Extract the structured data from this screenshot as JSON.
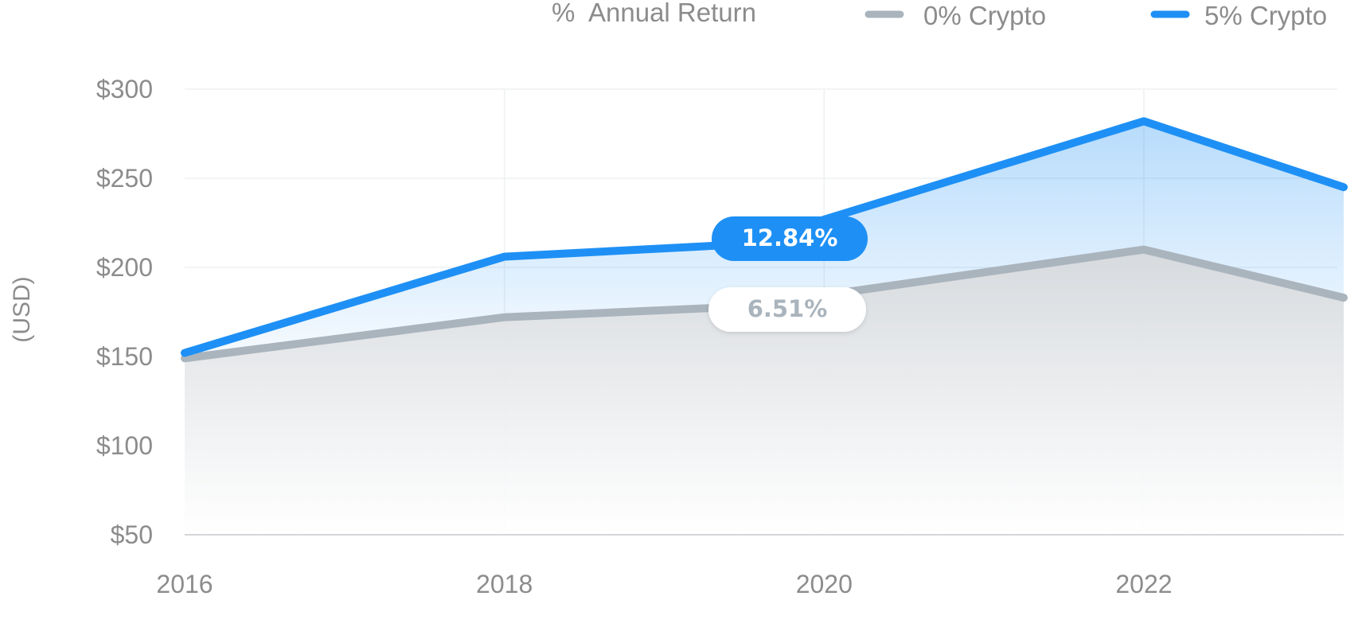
{
  "legend": {
    "percent_symbol": "%",
    "title": "Annual Return",
    "series_1": "0% Crypto",
    "series_2": "5% Crypto"
  },
  "colors": {
    "series_1": "#aab4bd",
    "series_2": "#1e90f5",
    "pill_1_bg": "#ffffff",
    "pill_1_text": "#aab4bd",
    "pill_2_bg": "#1e90f5",
    "pill_2_text": "#ffffff"
  },
  "chart_data": {
    "type": "area",
    "title": "",
    "xlabel": "",
    "ylabel": "(USD)",
    "x": [
      2016,
      2018,
      2019.5,
      2022,
      2023.25
    ],
    "xticks": [
      2016,
      2018,
      2020,
      2022
    ],
    "xtick_labels": [
      "2016",
      "2018",
      "2020",
      "2022"
    ],
    "xlim": [
      2016,
      2023.25
    ],
    "ylim": [
      50,
      300
    ],
    "yticks": [
      50,
      100,
      150,
      200,
      250,
      300
    ],
    "ytick_labels": [
      "$50",
      "$100",
      "$150",
      "$200",
      "$250",
      "$300"
    ],
    "grid": true,
    "legend_position": "top-right",
    "series": [
      {
        "name": "0% Crypto",
        "values": [
          149,
          172,
          178,
          210,
          183
        ],
        "annual_return_label": "6.51%"
      },
      {
        "name": "5% Crypto",
        "values": [
          152,
          206,
          213,
          282,
          245
        ],
        "annual_return_label": "12.84%"
      }
    ]
  }
}
